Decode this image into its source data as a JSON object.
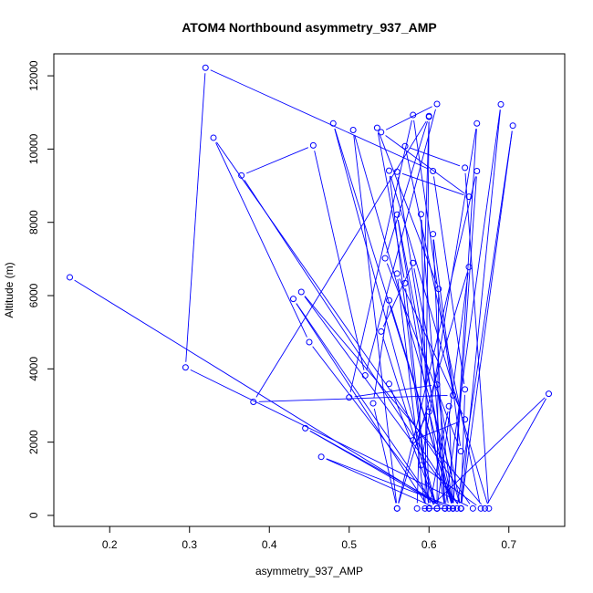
{
  "chart_data": {
    "type": "line",
    "title": "ATOM4 Northbound asymmetry_937_AMP",
    "xlabel": "asymmetry_937_AMP",
    "ylabel": "Altitude (m)",
    "xlim": [
      0.13,
      0.77
    ],
    "ylim": [
      -300,
      12600
    ],
    "xticks": [
      0.2,
      0.3,
      0.4,
      0.5,
      0.6,
      0.7
    ],
    "xtick_labels": [
      "0.2",
      "0.3",
      "0.4",
      "0.5",
      "0.6",
      "0.7"
    ],
    "yticks": [
      0,
      2000,
      4000,
      6000,
      8000,
      10000,
      12000
    ],
    "ytick_labels": [
      "0",
      "2000",
      "4000",
      "6000",
      "8000",
      "10000",
      "12000"
    ],
    "grid": false,
    "series": [
      {
        "color": "#0000ff",
        "marker": "open-circle",
        "points": [
          [
            0.15,
            6500
          ],
          [
            0.62,
            190
          ],
          [
            0.445,
            2380
          ],
          [
            0.625,
            190
          ],
          [
            0.56,
            9380
          ],
          [
            0.65,
            8700
          ],
          [
            0.54,
            10460
          ],
          [
            0.61,
            11230
          ],
          [
            0.52,
            3820
          ],
          [
            0.455,
            10100
          ],
          [
            0.365,
            9280
          ],
          [
            0.64,
            190
          ],
          [
            0.645,
            3440
          ],
          [
            0.605,
            9400
          ],
          [
            0.32,
            12220
          ],
          [
            0.295,
            4040
          ],
          [
            0.655,
            190
          ],
          [
            0.33,
            10310
          ],
          [
            0.45,
            4730
          ],
          [
            0.61,
            190
          ],
          [
            0.48,
            10700
          ],
          [
            0.63,
            190
          ],
          [
            0.61,
            3570
          ],
          [
            0.5,
            3220
          ],
          [
            0.58,
            10930
          ],
          [
            0.63,
            3280
          ],
          [
            0.38,
            3100
          ],
          [
            0.6,
            10880
          ],
          [
            0.585,
            190
          ],
          [
            0.64,
            190
          ],
          [
            0.69,
            11220
          ],
          [
            0.62,
            190
          ],
          [
            0.56,
            8210
          ],
          [
            0.63,
            190
          ],
          [
            0.66,
            9400
          ],
          [
            0.56,
            190
          ],
          [
            0.505,
            10520
          ],
          [
            0.64,
            190
          ],
          [
            0.58,
            6890
          ],
          [
            0.54,
            5020
          ],
          [
            0.61,
            190
          ],
          [
            0.465,
            1600
          ],
          [
            0.635,
            190
          ],
          [
            0.705,
            10640
          ],
          [
            0.64,
            190
          ],
          [
            0.44,
            6100
          ],
          [
            0.67,
            190
          ],
          [
            0.75,
            3320
          ],
          [
            0.6,
            190
          ],
          [
            0.43,
            5910
          ],
          [
            0.61,
            190
          ],
          [
            0.65,
            6780
          ],
          [
            0.56,
            190
          ],
          [
            0.53,
            3060
          ],
          [
            0.55,
            5870
          ],
          [
            0.63,
            190
          ],
          [
            0.66,
            10700
          ],
          [
            0.59,
            1370
          ],
          [
            0.665,
            190
          ],
          [
            0.57,
            10080
          ],
          [
            0.645,
            9490
          ],
          [
            0.675,
            190
          ],
          [
            0.55,
            9410
          ],
          [
            0.6,
            190
          ],
          [
            0.59,
            8220
          ],
          [
            0.62,
            190
          ],
          [
            0.605,
            7680
          ],
          [
            0.64,
            1750
          ],
          [
            0.545,
            7020
          ],
          [
            0.6,
            10900
          ],
          [
            0.595,
            190
          ],
          [
            0.56,
            6600
          ],
          [
            0.645,
            2620
          ],
          [
            0.58,
            2050
          ],
          [
            0.6,
            2830
          ],
          [
            0.63,
            190
          ],
          [
            0.625,
            2980
          ],
          [
            0.6,
            190
          ],
          [
            0.57,
            6340
          ],
          [
            0.535,
            10580
          ],
          [
            0.612,
            6180
          ],
          [
            0.61,
            190
          ],
          [
            0.55,
            3590
          ]
        ]
      }
    ]
  }
}
